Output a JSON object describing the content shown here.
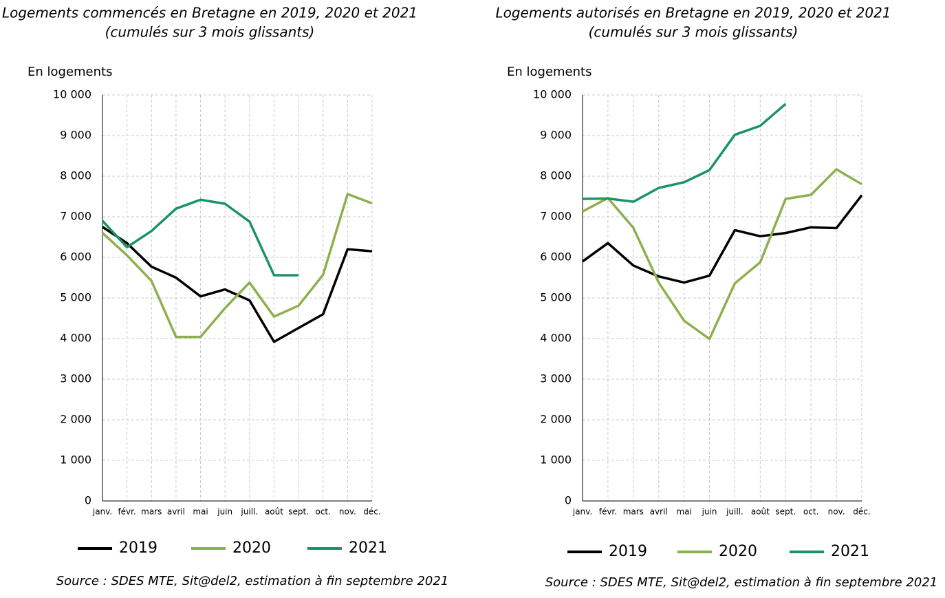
{
  "chart_data": [
    {
      "type": "line",
      "title": "Logements commencés en Bretagne en 2019, 2020 et 2021",
      "subtitle": "(cumulés sur 3 mois glissants)",
      "y_label": "En logements",
      "source": "Source : SDES MTE, Sit@del2, estimation à fin septembre 2021",
      "categories": [
        "janv.",
        "févr.",
        "mars",
        "avril",
        "mai",
        "juin",
        "juill.",
        "août",
        "sept.",
        "oct.",
        "nov.",
        "déc."
      ],
      "series": [
        {
          "name": "2019",
          "color": "#000000",
          "values": [
            6750,
            6350,
            5770,
            5500,
            5040,
            5210,
            4940,
            3920,
            4260,
            4600,
            6200,
            6150
          ]
        },
        {
          "name": "2020",
          "color": "#8db04f",
          "values": [
            6600,
            6050,
            5420,
            4040,
            4040,
            4750,
            5380,
            4540,
            4810,
            5570,
            7560,
            7330
          ]
        },
        {
          "name": "2021",
          "color": "#1a9464",
          "values": [
            6900,
            6250,
            6650,
            7200,
            7420,
            7320,
            6880,
            5560,
            5560,
            null,
            null,
            null
          ]
        }
      ],
      "ylim": [
        0,
        10000
      ],
      "yticks": [
        0,
        {
          "value": 1000,
          "label": "1 000"
        },
        {
          "value": 2000,
          "label": "2 000"
        },
        {
          "value": 3000,
          "label": "3 000"
        },
        {
          "value": 4000,
          "label": "4 000"
        },
        {
          "value": 5000,
          "label": "5 000"
        },
        {
          "value": 6000,
          "label": "6 000"
        },
        {
          "value": 7000,
          "label": "7 000"
        },
        {
          "value": 8000,
          "label": "8 000"
        },
        {
          "value": 9000,
          "label": "9 000"
        },
        {
          "value": 10000,
          "label": "10 000"
        }
      ],
      "grid": true
    },
    {
      "type": "line",
      "title": "Logements autorisés en Bretagne en 2019, 2020 et 2021",
      "subtitle": "(cumulés sur 3 mois glissants)",
      "y_label": "En logements",
      "source": "Source : SDES MTE, Sit@del2, estimation à fin septembre 2021",
      "categories": [
        "janv.",
        "févr.",
        "mars",
        "avril",
        "mai",
        "juin",
        "juill.",
        "août",
        "sept.",
        "oct.",
        "nov.",
        "déc."
      ],
      "series": [
        {
          "name": "2019",
          "color": "#000000",
          "values": [
            5900,
            6350,
            5800,
            5530,
            5380,
            5550,
            6670,
            6520,
            6600,
            6740,
            6720,
            7530
          ]
        },
        {
          "name": "2020",
          "color": "#8db04f",
          "values": [
            7130,
            7460,
            6730,
            5380,
            4440,
            3990,
            5360,
            5880,
            7440,
            7540,
            8170,
            7800
          ]
        },
        {
          "name": "2021",
          "color": "#1a9464",
          "values": [
            7440,
            7450,
            7370,
            7710,
            7850,
            8150,
            9020,
            9240,
            9780,
            null,
            null,
            null
          ]
        }
      ],
      "ylim": [
        0,
        10000
      ],
      "yticks": [
        0,
        {
          "value": 1000,
          "label": "1 000"
        },
        {
          "value": 2000,
          "label": "2 000"
        },
        {
          "value": 3000,
          "label": "3 000"
        },
        {
          "value": 4000,
          "label": "4 000"
        },
        {
          "value": 5000,
          "label": "5 000"
        },
        {
          "value": 6000,
          "label": "6 000"
        },
        {
          "value": 7000,
          "label": "7 000"
        },
        {
          "value": 8000,
          "label": "8 000"
        },
        {
          "value": 9000,
          "label": "9 000"
        },
        {
          "value": 10000,
          "label": "10 000"
        }
      ],
      "grid": true
    }
  ]
}
